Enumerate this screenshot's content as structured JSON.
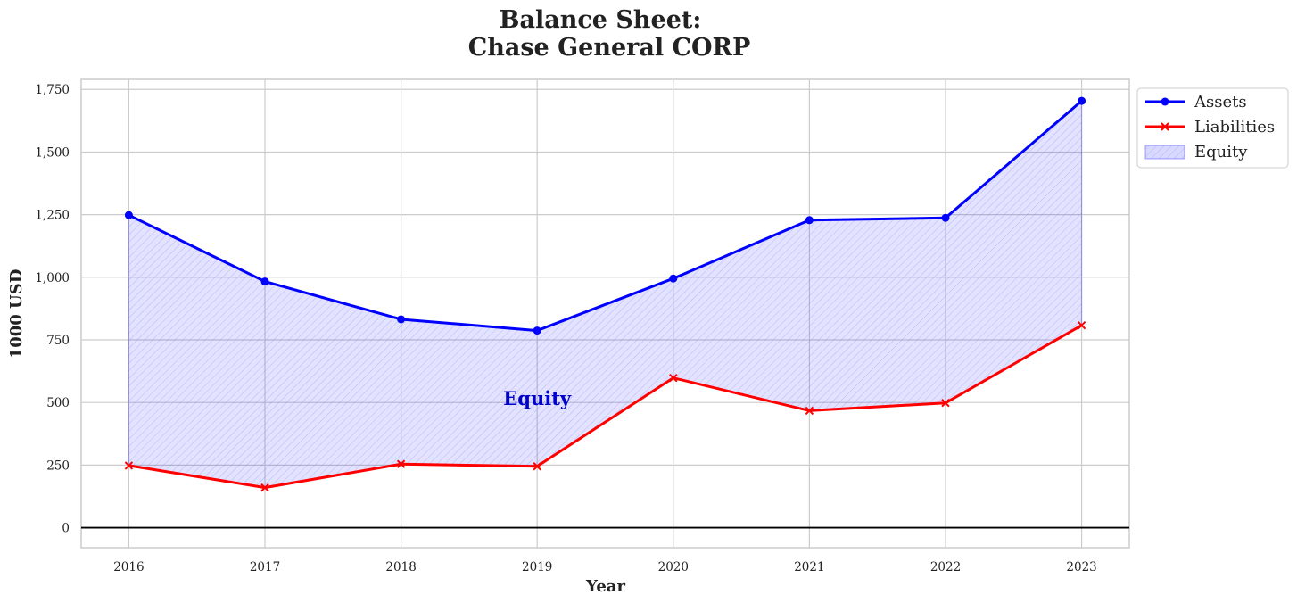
{
  "chart_data": {
    "type": "line",
    "title_line1": "Balance Sheet:",
    "title_line2": "Chase General CORP",
    "xlabel": "Year",
    "ylabel": "1000 USD",
    "x": [
      2016,
      2017,
      2018,
      2019,
      2020,
      2021,
      2022,
      2023
    ],
    "x_tick_labels": [
      "2016",
      "2017",
      "2018",
      "2019",
      "2020",
      "2021",
      "2022",
      "2023"
    ],
    "y_ticks": [
      0,
      250,
      500,
      750,
      1000,
      1250,
      1500,
      1750
    ],
    "y_tick_labels": [
      "0",
      "250",
      "500",
      "750",
      "1,000",
      "1,250",
      "1,500",
      "1,750"
    ],
    "xlim": [
      2015.65,
      2023.35
    ],
    "ylim": [
      -80,
      1790
    ],
    "series": [
      {
        "name": "Assets",
        "values": [
          1248,
          983,
          832,
          787,
          995,
          1228,
          1237,
          1704
        ],
        "color": "#0000ff",
        "marker": "circle"
      },
      {
        "name": "Liabilities",
        "values": [
          248,
          160,
          254,
          245,
          598,
          467,
          498,
          808
        ],
        "color": "#ff0000",
        "marker": "x"
      }
    ],
    "fill": {
      "name": "Equity",
      "between": [
        "Assets",
        "Liabilities"
      ],
      "color": "#0000ff",
      "hatch": true
    },
    "annotation": {
      "text": "Equity",
      "x": 2019,
      "y": 500,
      "color": "#0000cc"
    },
    "zero_line": true,
    "grid": true,
    "legend": {
      "placement": "outside-top-right",
      "entries": [
        "Assets",
        "Liabilities",
        "Equity"
      ]
    }
  }
}
